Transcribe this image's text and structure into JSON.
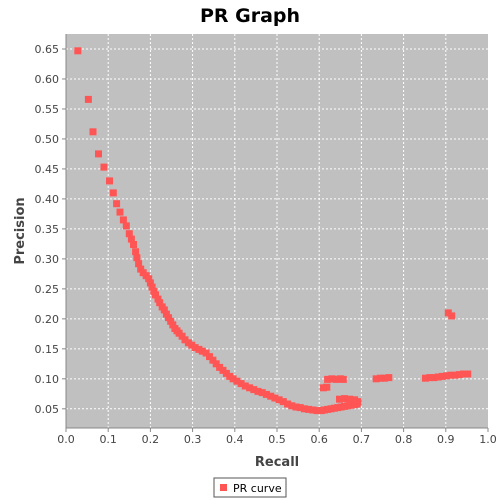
{
  "chart_data": {
    "type": "scatter",
    "title": "PR Graph",
    "xlabel": "Recall",
    "ylabel": "Precision",
    "xlim": [
      0.0,
      1.0
    ],
    "ylim": [
      0.018,
      0.675
    ],
    "x_ticks": [
      "0.0",
      "0.1",
      "0.2",
      "0.3",
      "0.4",
      "0.5",
      "0.6",
      "0.7",
      "0.8",
      "0.9",
      "1.0"
    ],
    "y_ticks": [
      "0.05",
      "0.10",
      "0.15",
      "0.20",
      "0.25",
      "0.30",
      "0.35",
      "0.40",
      "0.45",
      "0.50",
      "0.55",
      "0.60",
      "0.65"
    ],
    "grid": true,
    "legend_position": "bottom",
    "plot_background": "#c0c0c0",
    "series": [
      {
        "name": "PR curve",
        "color": "#ff5555",
        "points": [
          [
            0.028,
            0.647
          ],
          [
            0.053,
            0.566
          ],
          [
            0.064,
            0.512
          ],
          [
            0.077,
            0.475
          ],
          [
            0.09,
            0.453
          ],
          [
            0.103,
            0.43
          ],
          [
            0.112,
            0.41
          ],
          [
            0.12,
            0.392
          ],
          [
            0.128,
            0.378
          ],
          [
            0.136,
            0.365
          ],
          [
            0.143,
            0.355
          ],
          [
            0.15,
            0.342
          ],
          [
            0.155,
            0.333
          ],
          [
            0.16,
            0.324
          ],
          [
            0.165,
            0.312
          ],
          [
            0.168,
            0.302
          ],
          [
            0.172,
            0.292
          ],
          [
            0.177,
            0.283
          ],
          [
            0.183,
            0.277
          ],
          [
            0.19,
            0.272
          ],
          [
            0.196,
            0.267
          ],
          [
            0.2,
            0.26
          ],
          [
            0.204,
            0.253
          ],
          [
            0.208,
            0.246
          ],
          [
            0.212,
            0.24
          ],
          [
            0.218,
            0.233
          ],
          [
            0.222,
            0.227
          ],
          [
            0.228,
            0.22
          ],
          [
            0.233,
            0.215
          ],
          [
            0.238,
            0.208
          ],
          [
            0.243,
            0.202
          ],
          [
            0.248,
            0.196
          ],
          [
            0.253,
            0.19
          ],
          [
            0.258,
            0.184
          ],
          [
            0.263,
            0.18
          ],
          [
            0.268,
            0.176
          ],
          [
            0.275,
            0.171
          ],
          [
            0.282,
            0.165
          ],
          [
            0.29,
            0.16
          ],
          [
            0.298,
            0.156
          ],
          [
            0.306,
            0.152
          ],
          [
            0.315,
            0.149
          ],
          [
            0.323,
            0.146
          ],
          [
            0.332,
            0.143
          ],
          [
            0.34,
            0.137
          ],
          [
            0.348,
            0.131
          ],
          [
            0.356,
            0.125
          ],
          [
            0.364,
            0.119
          ],
          [
            0.372,
            0.114
          ],
          [
            0.38,
            0.109
          ],
          [
            0.388,
            0.104
          ],
          [
            0.396,
            0.1
          ],
          [
            0.405,
            0.096
          ],
          [
            0.415,
            0.092
          ],
          [
            0.425,
            0.088
          ],
          [
            0.435,
            0.085
          ],
          [
            0.445,
            0.082
          ],
          [
            0.455,
            0.079
          ],
          [
            0.465,
            0.077
          ],
          [
            0.475,
            0.074
          ],
          [
            0.485,
            0.071
          ],
          [
            0.495,
            0.068
          ],
          [
            0.505,
            0.065
          ],
          [
            0.515,
            0.062
          ],
          [
            0.525,
            0.058
          ],
          [
            0.535,
            0.055
          ],
          [
            0.545,
            0.053
          ],
          [
            0.555,
            0.052
          ],
          [
            0.565,
            0.05
          ],
          [
            0.575,
            0.049
          ],
          [
            0.585,
            0.048
          ],
          [
            0.595,
            0.047
          ],
          [
            0.605,
            0.047
          ],
          [
            0.612,
            0.048
          ],
          [
            0.62,
            0.049
          ],
          [
            0.628,
            0.05
          ],
          [
            0.636,
            0.051
          ],
          [
            0.644,
            0.052
          ],
          [
            0.652,
            0.053
          ],
          [
            0.66,
            0.054
          ],
          [
            0.668,
            0.055
          ],
          [
            0.676,
            0.056
          ],
          [
            0.684,
            0.057
          ],
          [
            0.69,
            0.058
          ],
          [
            0.692,
            0.062
          ],
          [
            0.684,
            0.065
          ],
          [
            0.672,
            0.066
          ],
          [
            0.66,
            0.067
          ],
          [
            0.648,
            0.066
          ],
          [
            0.61,
            0.085
          ],
          [
            0.618,
            0.086
          ],
          [
            0.62,
            0.099
          ],
          [
            0.63,
            0.1
          ],
          [
            0.64,
            0.099
          ],
          [
            0.65,
            0.1
          ],
          [
            0.657,
            0.099
          ],
          [
            0.735,
            0.1
          ],
          [
            0.745,
            0.101
          ],
          [
            0.755,
            0.101
          ],
          [
            0.765,
            0.102
          ],
          [
            0.852,
            0.101
          ],
          [
            0.862,
            0.102
          ],
          [
            0.872,
            0.102
          ],
          [
            0.882,
            0.103
          ],
          [
            0.892,
            0.104
          ],
          [
            0.902,
            0.105
          ],
          [
            0.912,
            0.106
          ],
          [
            0.922,
            0.106
          ],
          [
            0.932,
            0.107
          ],
          [
            0.942,
            0.108
          ],
          [
            0.952,
            0.108
          ],
          [
            0.906,
            0.21
          ],
          [
            0.914,
            0.205
          ]
        ]
      }
    ]
  }
}
